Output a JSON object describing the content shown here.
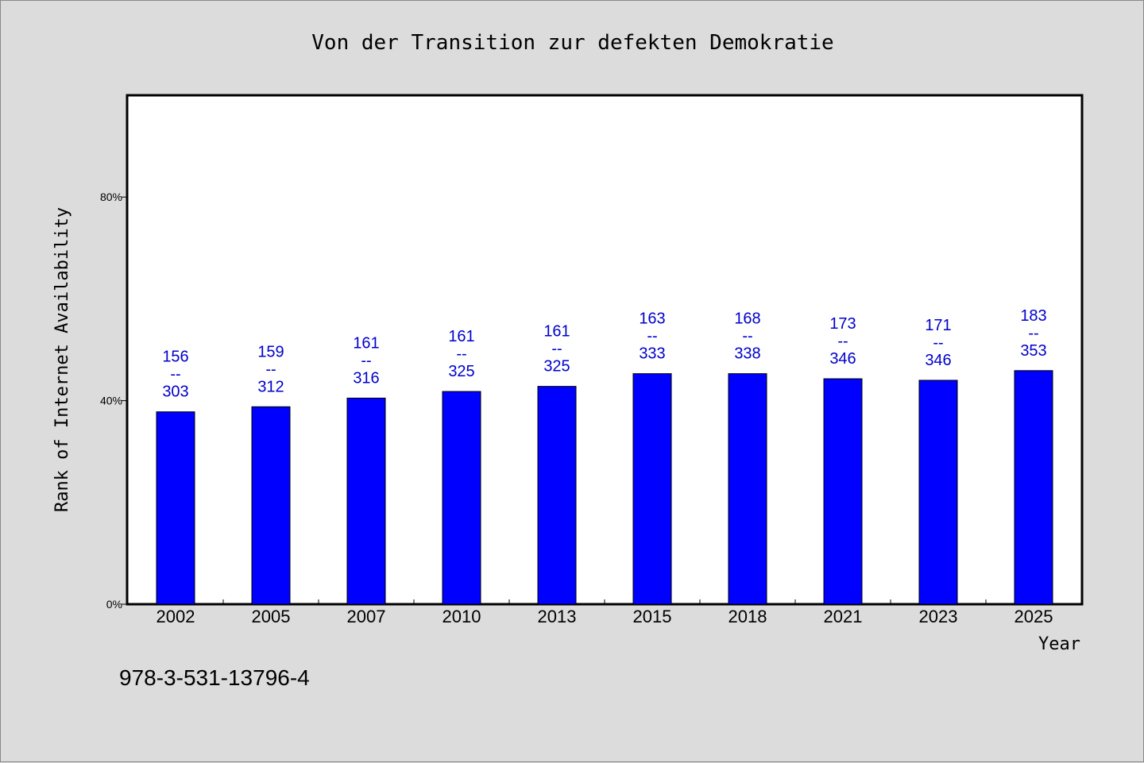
{
  "chart_data": {
    "type": "bar",
    "title": "Von der Transition zur defekten Demokratie",
    "xlabel": "Year",
    "ylabel": "Rank of Internet Availability",
    "categories": [
      "2002",
      "2005",
      "2007",
      "2010",
      "2013",
      "2015",
      "2018",
      "2021",
      "2023",
      "2025"
    ],
    "values": [
      37.8,
      38.8,
      40.5,
      41.8,
      42.8,
      45.3,
      45.3,
      44.3,
      44.0,
      45.9
    ],
    "data_labels": [
      {
        "top": "156",
        "sep": "--",
        "bottom": "303"
      },
      {
        "top": "159",
        "sep": "--",
        "bottom": "312"
      },
      {
        "top": "161",
        "sep": "--",
        "bottom": "316"
      },
      {
        "top": "161",
        "sep": "--",
        "bottom": "325"
      },
      {
        "top": "161",
        "sep": "--",
        "bottom": "325"
      },
      {
        "top": "163",
        "sep": "--",
        "bottom": "333"
      },
      {
        "top": "168",
        "sep": "--",
        "bottom": "338"
      },
      {
        "top": "173",
        "sep": "--",
        "bottom": "346"
      },
      {
        "top": "171",
        "sep": "--",
        "bottom": "346"
      },
      {
        "top": "183",
        "sep": "--",
        "bottom": "353"
      }
    ],
    "ylim": [
      0,
      100
    ],
    "yticks": [
      0,
      40,
      80
    ],
    "ytick_labels": [
      "0%",
      "40%",
      "80%"
    ],
    "grid": false,
    "bar_color": "#0000ff",
    "label_color": "#0000cc"
  },
  "footer": {
    "isbn": "978-3-531-13796-4"
  }
}
